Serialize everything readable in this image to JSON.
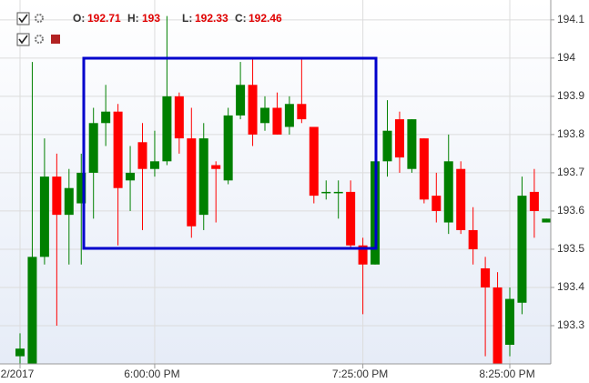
{
  "chart_data": {
    "type": "candlestick",
    "ohlc_legend": {
      "labels": [
        "O:",
        "H:",
        "L:",
        "C:"
      ],
      "values": [
        192.71,
        193,
        192.33,
        192.46
      ]
    },
    "categories": [
      "2/2017",
      null,
      null,
      null,
      null,
      null,
      null,
      null,
      null,
      null,
      null,
      "6:00:00 PM",
      null,
      null,
      null,
      null,
      null,
      null,
      null,
      null,
      null,
      null,
      null,
      null,
      null,
      null,
      null,
      null,
      "7:25:00 PM",
      null,
      null,
      null,
      null,
      null,
      null,
      null,
      null,
      null,
      null,
      null,
      "8:25:00 PM",
      null,
      null,
      null
    ],
    "open": [
      193.22,
      193.2,
      193.48,
      193.69,
      193.59,
      193.62,
      193.7,
      193.83,
      193.86,
      193.68,
      193.78,
      193.71,
      193.73,
      193.9,
      193.79,
      193.59,
      193.72,
      193.68,
      193.85,
      193.93,
      193.83,
      193.87,
      193.82,
      193.88,
      193.82,
      193.65,
      193.65,
      193.65,
      193.51,
      193.46,
      193.73,
      193.84,
      193.71,
      193.79,
      193.64,
      193.57,
      193.71,
      193.55,
      193.45,
      193.4,
      193.25,
      193.36,
      193.65,
      193.57
    ],
    "high": [
      193.28,
      193.99,
      193.79,
      193.75,
      193.71,
      193.75,
      193.87,
      193.93,
      193.88,
      193.77,
      193.83,
      193.81,
      194.11,
      193.91,
      193.87,
      193.83,
      193.73,
      193.87,
      193.99,
      194.0,
      193.9,
      193.91,
      193.9,
      194.0,
      193.82,
      193.68,
      193.68,
      193.68,
      193.53,
      193.73,
      193.89,
      193.86,
      193.84,
      193.79,
      193.7,
      193.8,
      193.73,
      193.61,
      193.48,
      193.44,
      193.4,
      193.69,
      193.71,
      193.58
    ],
    "low": [
      193.2,
      193.2,
      193.46,
      193.3,
      193.46,
      193.46,
      193.58,
      193.77,
      193.51,
      193.6,
      193.55,
      193.69,
      193.72,
      193.75,
      193.53,
      193.55,
      193.57,
      193.67,
      193.84,
      193.77,
      193.81,
      193.8,
      193.8,
      193.83,
      193.62,
      193.63,
      193.58,
      193.5,
      193.33,
      193.46,
      193.69,
      193.7,
      193.7,
      193.62,
      193.57,
      193.54,
      193.54,
      193.46,
      193.22,
      193.2,
      193.22,
      193.33,
      193.53,
      193.57
    ],
    "close": [
      193.24,
      193.48,
      193.69,
      193.59,
      193.66,
      193.7,
      193.83,
      193.86,
      193.66,
      193.7,
      193.71,
      193.73,
      193.9,
      193.79,
      193.56,
      193.79,
      193.71,
      193.85,
      193.93,
      193.8,
      193.87,
      193.8,
      193.88,
      193.84,
      193.64,
      193.65,
      193.65,
      193.51,
      193.46,
      193.73,
      193.81,
      193.74,
      193.84,
      193.63,
      193.6,
      193.73,
      193.55,
      193.5,
      193.4,
      193.2,
      193.37,
      193.64,
      193.6,
      193.58
    ],
    "up_color": "#008000",
    "down_color": "#ff0000",
    "ylim": [
      193.2,
      194.152
    ],
    "yticks": [
      193.3,
      193.4,
      193.5,
      193.6,
      193.7,
      193.8,
      193.9,
      194,
      194.1
    ],
    "grid": true
  }
}
